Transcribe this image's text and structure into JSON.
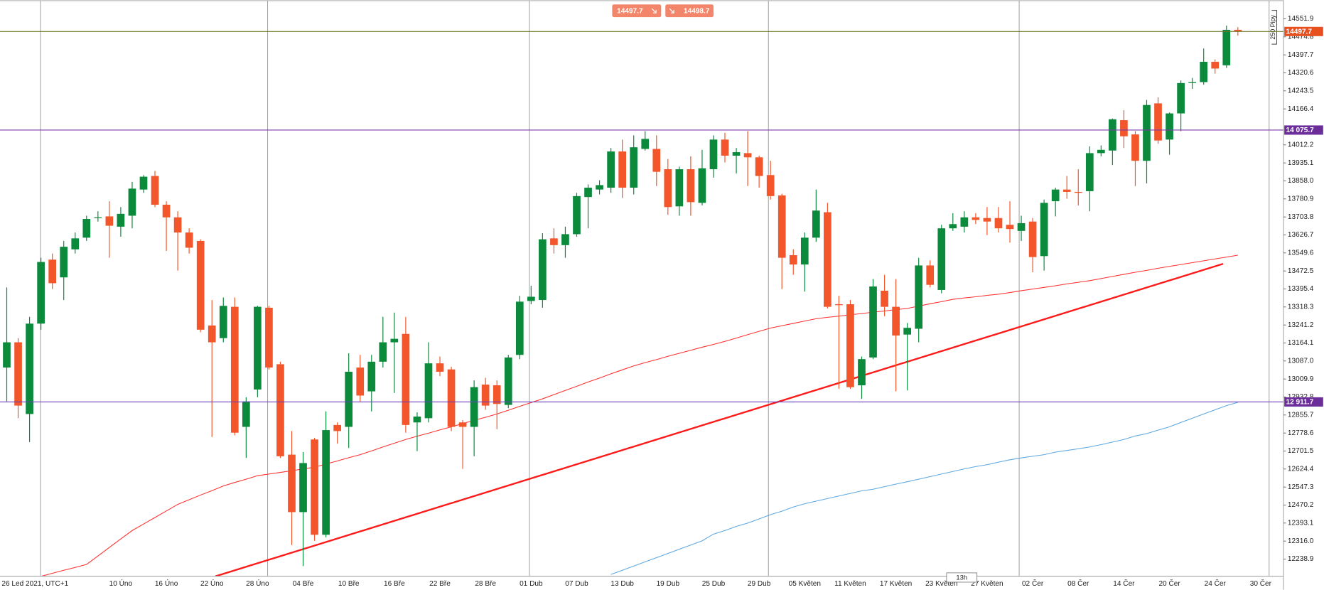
{
  "chart_data": {
    "type": "candlestick",
    "ylim": [
      12165.4,
      14631.5
    ],
    "yticks": [
      12238.9,
      {
        "value": 12316.0,
        "label": "12316.0"
      },
      12393.1,
      12470.2,
      12547.3,
      12624.4,
      12701.5,
      12778.6,
      12855.7,
      12932.8,
      13009.9,
      {
        "value": 13087.0,
        "label": "13087.0"
      },
      13164.1,
      13241.2,
      13318.3,
      13395.4,
      13472.5,
      13549.6,
      13626.7,
      13703.8,
      13780.9,
      {
        "value": 13858.0,
        "label": "13858.0"
      },
      13935.1,
      14012.2,
      14166.4,
      14243.5,
      14320.6,
      14397.7,
      14474.8,
      14551.9
    ],
    "categories": [
      "26 Led 2021, UTC+1",
      null,
      null,
      null,
      null,
      null,
      null,
      null,
      null,
      null,
      "10 Úno",
      null,
      null,
      null,
      "16 Úno",
      null,
      null,
      null,
      "22 Úno",
      null,
      null,
      null,
      "28 Úno",
      null,
      null,
      null,
      "04 Bře",
      null,
      null,
      null,
      "10 Bře",
      null,
      null,
      null,
      "16 Bře",
      null,
      null,
      null,
      "22 Bře",
      null,
      null,
      null,
      "28 Bře",
      null,
      null,
      null,
      "01 Dub",
      null,
      null,
      null,
      "07 Dub",
      null,
      null,
      null,
      "13 Dub",
      null,
      null,
      null,
      "19 Dub",
      null,
      null,
      null,
      "25 Dub",
      null,
      null,
      null,
      "29 Dub",
      null,
      null,
      null,
      "05 Květen",
      null,
      null,
      null,
      "11 Květen",
      null,
      null,
      null,
      "17 Květen",
      null,
      null,
      null,
      "23 Květen",
      null,
      null,
      null,
      "27 Květen",
      null,
      null,
      null,
      "02 Čer",
      null,
      null,
      null,
      "08 Čer",
      null,
      null,
      null,
      "14 Čer",
      null,
      null,
      null,
      "20 Čer",
      null,
      null,
      null,
      "24 Čer",
      null,
      null,
      null,
      "30 Čer"
    ],
    "up_color": "#0b8a3c",
    "down_color": "#f2562a",
    "open": [
      13059,
      13167,
      12860,
      13247,
      13521,
      13445,
      13565,
      13615,
      13699,
      13706,
      13662,
      13709,
      13821,
      13879,
      13756,
      13702,
      13637,
      13601,
      13239,
      13185,
      13319,
      12805,
      12965,
      13315,
      13073,
      12686,
      12440,
      12751,
      12343,
      12813,
      12805,
      13059,
      12957,
      13084,
      13167,
      13203,
      12824,
      12842,
      13077,
      13051,
      12824,
      12805,
      12986,
      12983,
      12899,
      13113,
      13344,
      13348,
      13612,
      13583,
      13630,
      13789,
      13821,
      13829,
      13984,
      13829,
      13995,
      13995,
      13908,
      13749,
      13908,
      13764,
      13908,
      14035,
      13966,
      13977,
      13959,
      13883,
      13796,
      13540,
      13500,
      13615,
      13724,
      13330,
      13330,
      12983,
      13102,
      13388,
      13319,
      13200,
      13225,
      13496,
      13391,
      13655,
      13662,
      13702,
      13699,
      13699,
      13670,
      13644,
      13684,
      13536,
      13771,
      13821,
      13811,
      13814,
      13977,
      13988,
      14118,
      14057,
      13944,
      14190,
      14035,
      14147,
      14277,
      14281,
      14368,
      14353,
      14505,
      null,
      null
    ],
    "high": [
      13402,
      13185,
      13276,
      13529,
      13547,
      13601,
      13637,
      13709,
      13728,
      13771,
      13746,
      13854,
      13883,
      13901,
      13771,
      13728,
      13655,
      13608,
      13348,
      13359,
      13359,
      12932,
      13323,
      13323,
      13084,
      12787,
      12697,
      12758,
      12871,
      12824,
      13120,
      13113,
      13113,
      13276,
      13294,
      13276,
      12867,
      13167,
      13106,
      13062,
      12834,
      13004,
      13015,
      13004,
      13113,
      13366,
      13409,
      13634,
      13655,
      13662,
      13807,
      13843,
      13861,
      13999,
      14035,
      14053,
      14071,
      14053,
      13952,
      13919,
      13963,
      13991,
      14053,
      14064,
      13999,
      14071,
      13966,
      13944,
      13803,
      13565,
      13637,
      13821,
      13764,
      13366,
      13348,
      13106,
      13438,
      13456,
      13438,
      13250,
      13529,
      13518,
      13670,
      13720,
      13728,
      13720,
      13746,
      13746,
      13771,
      13709,
      13699,
      13778,
      13829,
      13879,
      13908,
      14006,
      14010,
      14125,
      14161,
      14071,
      14205,
      14216,
      14151,
      14288,
      14299,
      14425,
      14378,
      14523,
      14516,
      null,
      null
    ],
    "low": [
      12914,
      12842,
      12740,
      13221,
      13395,
      13348,
      13547,
      13601,
      13684,
      13529,
      13619,
      13655,
      13807,
      13746,
      13558,
      13474,
      13547,
      13210,
      12762,
      13167,
      12769,
      12672,
      12932,
      13051,
      12672,
      12299,
      12209,
      12317,
      12332,
      12733,
      12715,
      12914,
      12871,
      13059,
      12950,
      12780,
      12701,
      12824,
      13022,
      12787,
      12625,
      12679,
      12878,
      12795,
      12885,
      13095,
      13330,
      13315,
      13547,
      13529,
      13619,
      13655,
      13800,
      13807,
      13785,
      13800,
      13988,
      13836,
      13713,
      13709,
      13709,
      13753,
      13872,
      13937,
      13890,
      13836,
      13829,
      13778,
      13395,
      13456,
      13384,
      13597,
      13312,
      12968,
      12968,
      12925,
      13095,
      13279,
      12957,
      12961,
      13167,
      13402,
      13377,
      13644,
      13637,
      13673,
      13626,
      13637,
      13594,
      13601,
      13467,
      13474,
      13706,
      13782,
      13753,
      13728,
      13963,
      13926,
      13999,
      13836,
      13847,
      14017,
      13970,
      14071,
      14252,
      14270,
      14317,
      14342,
      14480,
      null,
      null
    ],
    "close": [
      13167,
      12896,
      13247,
      13511,
      13420,
      13576,
      13612,
      13695,
      13702,
      13666,
      13717,
      13825,
      13876,
      13756,
      13702,
      13637,
      13572,
      13221,
      13167,
      13323,
      12780,
      12914,
      13319,
      13059,
      12679,
      12440,
      12650,
      12343,
      12791,
      12787,
      13041,
      12939,
      13084,
      13167,
      13182,
      12813,
      12849,
      13077,
      13041,
      12805,
      12805,
      12975,
      12896,
      12903,
      13102,
      13341,
      13362,
      13608,
      13583,
      13630,
      13793,
      13829,
      13840,
      13984,
      13829,
      14002,
      14038,
      13897,
      13746,
      13908,
      13767,
      13912,
      14035,
      13966,
      13981,
      13959,
      13879,
      13793,
      13529,
      13500,
      13615,
      13731,
      13319,
      13326,
      12975,
      13095,
      13406,
      13319,
      13196,
      13229,
      13496,
      13413,
      13655,
      13673,
      13702,
      13691,
      13684,
      13655,
      13652,
      13677,
      13532,
      13764,
      13821,
      13811,
      13807,
      13977,
      13991,
      14122,
      14049,
      13944,
      14183,
      14031,
      14147,
      14277,
      14281,
      14368,
      14339,
      14505,
      14497.7,
      null,
      null
    ],
    "indicators": [
      {
        "color": "#ff3030",
        "values": [
          null,
          null,
          null,
          12165,
          12178,
          12191,
          12203,
          12216,
          12252,
          12289,
          12325,
          12361,
          12389,
          12417,
          12445,
          12473,
          12493,
          12513,
          12532,
          12552,
          12567,
          12581,
          12596,
          12603,
          12610,
          12617,
          12625,
          12632,
          12646,
          12659,
          12673,
          12686,
          12702,
          12719,
          12735,
          12751,
          12765,
          12778,
          12792,
          12805,
          12819,
          12833,
          12846,
          12860,
          12876,
          12893,
          12909,
          12925,
          12943,
          12961,
          12979,
          12997,
          13014,
          13032,
          13049,
          13066,
          13080,
          13093,
          13107,
          13120,
          13133,
          13146,
          13158,
          13171,
          13185,
          13200,
          13214,
          13228,
          13238,
          13248,
          13258,
          13268,
          13274,
          13279,
          13285,
          13290,
          13296,
          13301,
          13307,
          13312,
          13322,
          13332,
          13341,
          13351,
          13357,
          13362,
          13368,
          13373,
          13380,
          13388,
          13395,
          13402,
          13409,
          13417,
          13424,
          13431,
          13440,
          13449,
          13458,
          13467,
          13475,
          13484,
          13492,
          13500,
          13508,
          13516,
          13524,
          13532,
          13540,
          null,
          null
        ]
      },
      {
        "color": "#5ea8e0",
        "values": [
          null,
          null,
          null,
          null,
          null,
          null,
          null,
          null,
          null,
          null,
          null,
          null,
          null,
          null,
          null,
          null,
          null,
          null,
          null,
          null,
          null,
          null,
          null,
          null,
          null,
          null,
          null,
          null,
          null,
          null,
          null,
          null,
          null,
          null,
          null,
          null,
          null,
          null,
          null,
          null,
          null,
          null,
          null,
          null,
          null,
          null,
          null,
          null,
          null,
          null,
          null,
          null,
          null,
          12173,
          12191,
          12209,
          12227,
          12245,
          12263,
          12281,
          12299,
          12317,
          12346,
          12361,
          12379,
          12393,
          12411,
          12429,
          12444,
          12462,
          12476,
          12487,
          12498,
          12509,
          12520,
          12531,
          12538,
          12549,
          12560,
          12570,
          12581,
          12592,
          12603,
          12614,
          12625,
          12635,
          12643,
          12654,
          12664,
          12672,
          12679,
          12686,
          12697,
          12704,
          12711,
          12719,
          12729,
          12740,
          12751,
          12766,
          12776,
          12791,
          12805,
          12824,
          12842,
          12860,
          12878,
          12896,
          12910,
          null,
          null
        ]
      }
    ],
    "trendline": {
      "x": [
        18.3,
        106.7
      ],
      "y": [
        12165,
        13503
      ],
      "color": "#ff1a1a"
    },
    "levels": [
      {
        "value": 14497.7,
        "color": "#e8501f",
        "line_color": "#6f7a2e"
      },
      {
        "value": 14075.7,
        "label": "14 075.7",
        "color": "#6a2d9a",
        "line_color": "#7b3aa8"
      },
      {
        "value": 12911.7,
        "label": "12 911.7",
        "color": "#6a2d9a",
        "line_color": "#6a3fc0"
      }
    ],
    "bid": 14497.7,
    "ask": 14498.7,
    "scale_label": "250 Pipy",
    "zoom_label": "13h"
  }
}
